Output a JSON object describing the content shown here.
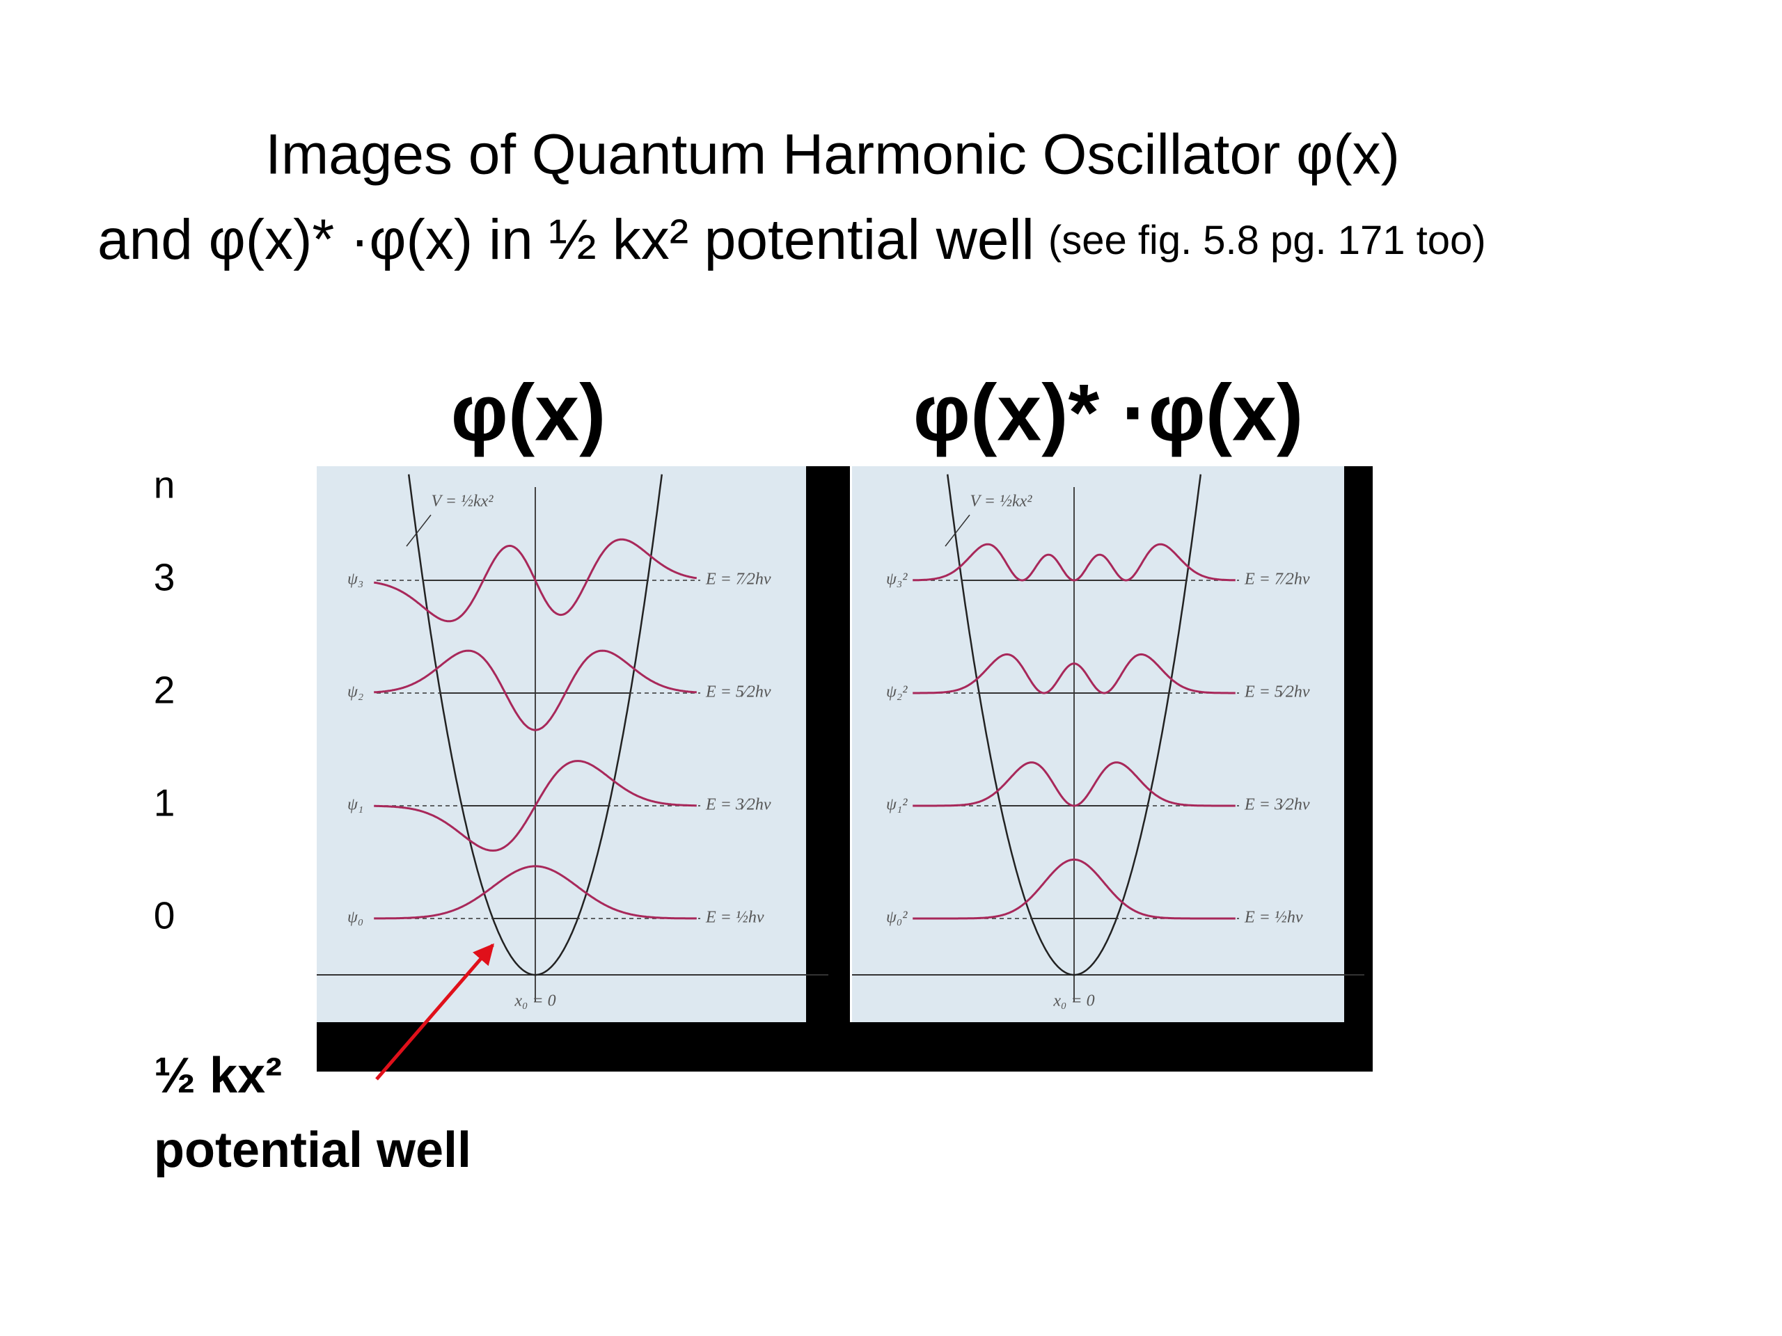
{
  "title": {
    "line1": "Images of Quantum Harmonic Oscillator φ(x)",
    "line2": "and  φ(x)* ·φ(x) in ½ kx² potential well",
    "note": "(see fig. 5.8 pg. 171 too)"
  },
  "n_axis": {
    "label": "n",
    "levels": [
      "0",
      "1",
      "2",
      "3"
    ]
  },
  "panels": [
    {
      "heading": "φ(x)",
      "potential_label": "V = ½kx²",
      "origin_label": "x₀ = 0",
      "states": [
        {
          "label": "ψ₀",
          "energy": "E = ½hν"
        },
        {
          "label": "ψ₁",
          "energy": "E = 3⁄2hν"
        },
        {
          "label": "ψ₂",
          "energy": "E = 5⁄2hν"
        },
        {
          "label": "ψ₃",
          "energy": "E = 7⁄2hν"
        }
      ]
    },
    {
      "heading": "φ(x)* ·φ(x)",
      "potential_label": "V = ½kx²",
      "origin_label": "x₀ = 0",
      "states": [
        {
          "label": "ψ₀²",
          "energy": "E = ½hν"
        },
        {
          "label": "ψ₁²",
          "energy": "E = 3⁄2hν"
        },
        {
          "label": "ψ₂²",
          "energy": "E = 5⁄2hν"
        },
        {
          "label": "ψ₃²",
          "energy": "E = 7⁄2hν"
        }
      ]
    }
  ],
  "annotation": {
    "line1": "½ kx²",
    "line2": "potential well"
  }
}
